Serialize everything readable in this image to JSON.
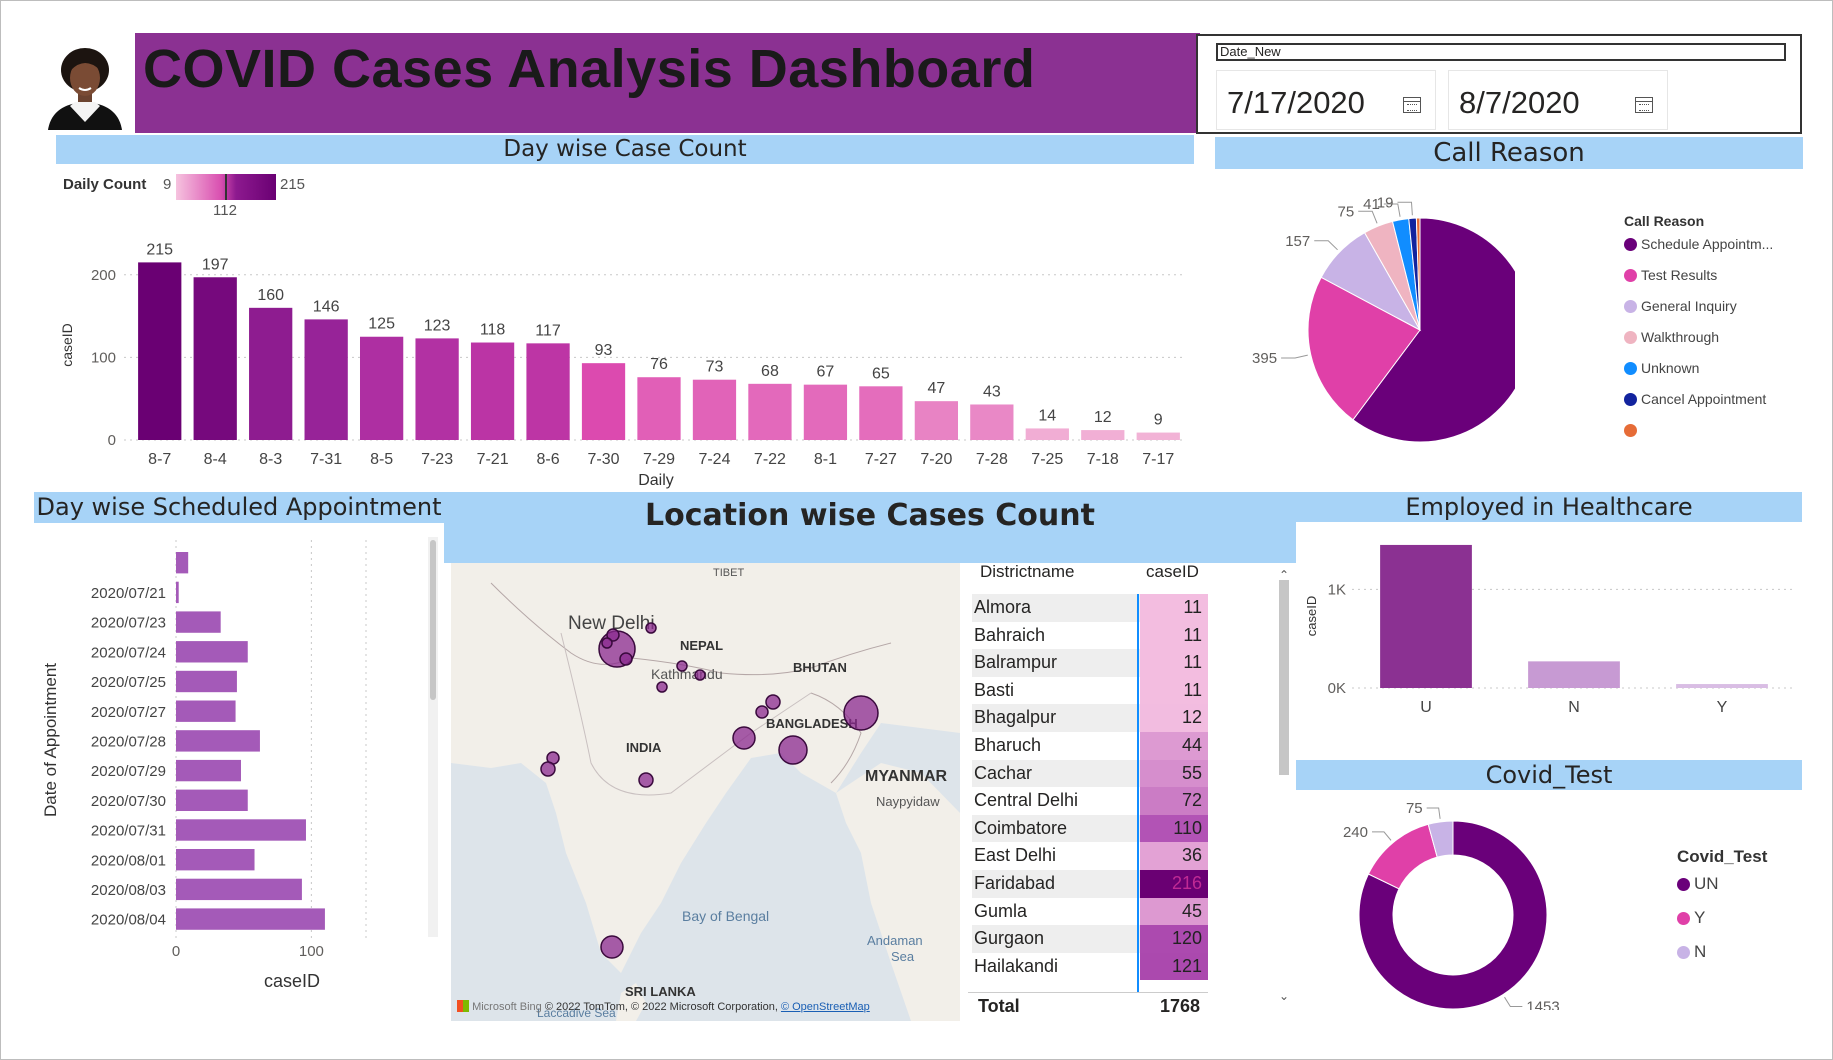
{
  "header": {
    "title": "COVID Cases Analysis Dashboard",
    "avatar_icon": "person-avatar-icon",
    "band_color": "#8b3192"
  },
  "date_slicer": {
    "label": "Date_New",
    "start": "7/17/2020",
    "end": "8/7/2020",
    "calendar_icon": "calendar-icon"
  },
  "day_wise_case_count": {
    "panel_title": "Day wise Case Count",
    "legend": {
      "label": "Daily Count",
      "min": "9",
      "mid": "112",
      "max": "215",
      "gradient_from": "#f2b3d6",
      "gradient_to": "#6a0073"
    }
  },
  "call_reason": {
    "panel_title": "Call Reason",
    "legend_title": "Call Reason"
  },
  "scheduled_appointment": {
    "panel_title": "Day wise Scheduled Appointment"
  },
  "location": {
    "panel_title": "Location wise Cases Count",
    "map_labels": {
      "tibet": "TIBET",
      "new_delhi": "New Delhi",
      "nepal": "NEPAL",
      "kathmandu": "Kathmandu",
      "bhutan": "BHUTAN",
      "india": "INDIA",
      "bangladesh": "BANGLADESH",
      "myanmar": "MYANMAR",
      "naypyidaw": "Naypyidaw",
      "bay_of_bengal": "Bay of Bengal",
      "andaman_sea_1": "Andaman",
      "andaman_sea_2": "Sea",
      "sri_lanka": "SRI LANKA",
      "laccadive": "Laccadive Sea"
    },
    "map_credit": {
      "bing": "Microsoft Bing",
      "text": "© 2022 TomTom, © 2022 Microsoft Corporation,",
      "osm": "© OpenStreetMap"
    },
    "table": {
      "col_district": "Districtname",
      "col_case": "caseID",
      "rows": [
        {
          "name": "Almora",
          "value": "11"
        },
        {
          "name": "Bahraich",
          "value": "11"
        },
        {
          "name": "Balrampur",
          "value": "11"
        },
        {
          "name": "Basti",
          "value": "11"
        },
        {
          "name": "Bhagalpur",
          "value": "12"
        },
        {
          "name": "Bharuch",
          "value": "44"
        },
        {
          "name": "Cachar",
          "value": "55"
        },
        {
          "name": "Central Delhi",
          "value": "72"
        },
        {
          "name": "Coimbatore",
          "value": "110"
        },
        {
          "name": "East Delhi",
          "value": "36"
        },
        {
          "name": "Faridabad",
          "value": "216"
        },
        {
          "name": "Gumla",
          "value": "45"
        },
        {
          "name": "Gurgaon",
          "value": "120"
        },
        {
          "name": "Hailakandi",
          "value": "121"
        }
      ],
      "total_label": "Total",
      "total_value": "1768"
    }
  },
  "employed_healthcare": {
    "panel_title": "Employed in Healthcare"
  },
  "covid_test": {
    "panel_title": "Covid_Test",
    "legend_title": "Covid_Test"
  },
  "chart_data": [
    {
      "type": "bar",
      "id": "daily-case-count",
      "title": "Day wise Case Count",
      "xlabel": "Daily",
      "ylabel": "caseID",
      "categories": [
        "8-7",
        "8-4",
        "8-3",
        "7-31",
        "8-5",
        "7-23",
        "7-21",
        "8-6",
        "7-30",
        "7-29",
        "7-24",
        "7-22",
        "8-1",
        "7-27",
        "7-20",
        "7-28",
        "7-25",
        "7-18",
        "7-17"
      ],
      "values": [
        215,
        197,
        160,
        146,
        125,
        123,
        118,
        117,
        93,
        76,
        73,
        68,
        67,
        65,
        47,
        43,
        14,
        12,
        9
      ],
      "yticks": [
        0,
        100,
        200
      ],
      "ylim": [
        0,
        230
      ],
      "grid": true
    },
    {
      "type": "pie",
      "id": "call-reason",
      "title": "Call Reason",
      "labels": [
        "Schedule Appointm...",
        "Test Results",
        "General Inquiry",
        "Walkthrough",
        "Unknown",
        "Cancel Appointment",
        ""
      ],
      "values": [
        1053,
        395,
        157,
        75,
        41,
        19,
        9
      ],
      "colors": [
        "#6a007a",
        "#e040a8",
        "#c8b3e6",
        "#efb4c1",
        "#118dff",
        "#12239e",
        "#e66c37"
      ],
      "legend": "right"
    },
    {
      "type": "bar",
      "id": "scheduled-appointment",
      "orientation": "horizontal",
      "title": "Day wise Scheduled Appointment",
      "xlabel": "caseID",
      "ylabel": "Date of Appointment",
      "categories": [
        "",
        "2020/07/21",
        "2020/07/23",
        "2020/07/24",
        "2020/07/25",
        "2020/07/27",
        "2020/07/28",
        "2020/07/29",
        "2020/07/30",
        "2020/07/31",
        "2020/08/01",
        "2020/08/03",
        "2020/08/04"
      ],
      "values": [
        9,
        2,
        33,
        53,
        45,
        44,
        62,
        48,
        53,
        96,
        58,
        93,
        110
      ],
      "xticks": [
        0,
        100
      ],
      "color": "#a45ab8",
      "grid": true
    },
    {
      "type": "bar",
      "id": "employed-healthcare",
      "title": "Employed in Healthcare",
      "ylabel": "caseID",
      "categories": [
        "U",
        "N",
        "Y"
      ],
      "values": [
        1450,
        270,
        40
      ],
      "ytick_labels": [
        "0K",
        "1K"
      ],
      "ylim": [
        0,
        1500
      ],
      "colors": [
        "#8b3192",
        "#c79ad3",
        "#d9bde4"
      ],
      "grid": true
    },
    {
      "type": "pie",
      "id": "covid-test",
      "subtype": "donut",
      "title": "Covid_Test",
      "labels": [
        "UN",
        "Y",
        "N"
      ],
      "values": [
        1453,
        240,
        75
      ],
      "colors": [
        "#6a007a",
        "#e040a8",
        "#c8b3e6"
      ],
      "legend": "right"
    }
  ]
}
